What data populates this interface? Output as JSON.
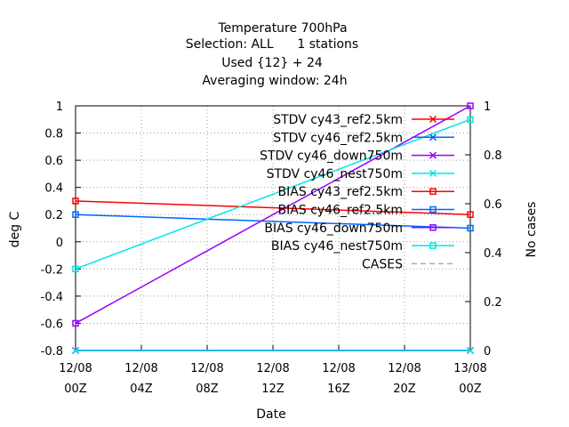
{
  "chart_data": {
    "type": "line",
    "title_lines": [
      "Temperature 700hPa",
      "Selection: ALL      1 stations",
      "Used {12} + 24",
      "Averaging window: 24h"
    ],
    "xlabel": "Date",
    "ylabel": "deg C",
    "y2label": "No cases",
    "x_ticks": [
      {
        "line1": "12/08",
        "line2": "00Z",
        "hours": 0
      },
      {
        "line1": "12/08",
        "line2": "04Z",
        "hours": 4
      },
      {
        "line1": "12/08",
        "line2": "08Z",
        "hours": 8
      },
      {
        "line1": "12/08",
        "line2": "12Z",
        "hours": 12
      },
      {
        "line1": "12/08",
        "line2": "16Z",
        "hours": 16
      },
      {
        "line1": "12/08",
        "line2": "20Z",
        "hours": 20
      },
      {
        "line1": "13/08",
        "line2": "00Z",
        "hours": 24
      }
    ],
    "xlim": [
      0,
      24
    ],
    "ylim": [
      -0.8,
      1
    ],
    "y_ticks": [
      "-0.8",
      "-0.6",
      "-0.4",
      "-0.2",
      "0",
      "0.2",
      "0.4",
      "0.6",
      "0.8",
      "1"
    ],
    "y2lim": [
      0,
      1
    ],
    "y2_ticks": [
      "0",
      "0.2",
      "0.4",
      "0.6",
      "0.8",
      "1"
    ],
    "grid": true,
    "legend_position": "top-right",
    "series": [
      {
        "name": "STDV cy43_ref2.5km",
        "color": "#ff0000",
        "marker": "x",
        "x": [
          0,
          24
        ],
        "y": [
          0,
          0
        ],
        "axis": "y2"
      },
      {
        "name": "STDV cy46_ref2.5km",
        "color": "#0066ff",
        "marker": "x",
        "x": [
          0,
          24
        ],
        "y": [
          0,
          0
        ],
        "axis": "y2"
      },
      {
        "name": "STDV cy46_down750m",
        "color": "#9900ff",
        "marker": "x",
        "x": [
          0,
          24
        ],
        "y": [
          0,
          0
        ],
        "axis": "y2"
      },
      {
        "name": "STDV cy46_nest750m",
        "color": "#00e5e5",
        "marker": "x",
        "x": [
          0,
          24
        ],
        "y": [
          0,
          0
        ],
        "axis": "y2"
      },
      {
        "name": "BIAS cy43_ref2.5km",
        "color": "#ff0000",
        "marker": "square",
        "x": [
          0,
          24
        ],
        "y": [
          0.3,
          0.2
        ],
        "axis": "y"
      },
      {
        "name": "BIAS cy46_ref2.5km",
        "color": "#0066ff",
        "marker": "square",
        "x": [
          0,
          24
        ],
        "y": [
          0.2,
          0.1
        ],
        "axis": "y"
      },
      {
        "name": "BIAS cy46_down750m",
        "color": "#9900ff",
        "marker": "square",
        "x": [
          0,
          24
        ],
        "y": [
          -0.6,
          1.0
        ],
        "axis": "y"
      },
      {
        "name": "BIAS cy46_nest750m",
        "color": "#00e5e5",
        "marker": "square",
        "x": [
          0,
          24
        ],
        "y": [
          -0.2,
          0.9
        ],
        "axis": "y"
      },
      {
        "name": "CASES",
        "color": "#aaaaaa",
        "marker": "none",
        "dashed": true,
        "x": [],
        "y": [],
        "axis": "y2"
      }
    ]
  }
}
